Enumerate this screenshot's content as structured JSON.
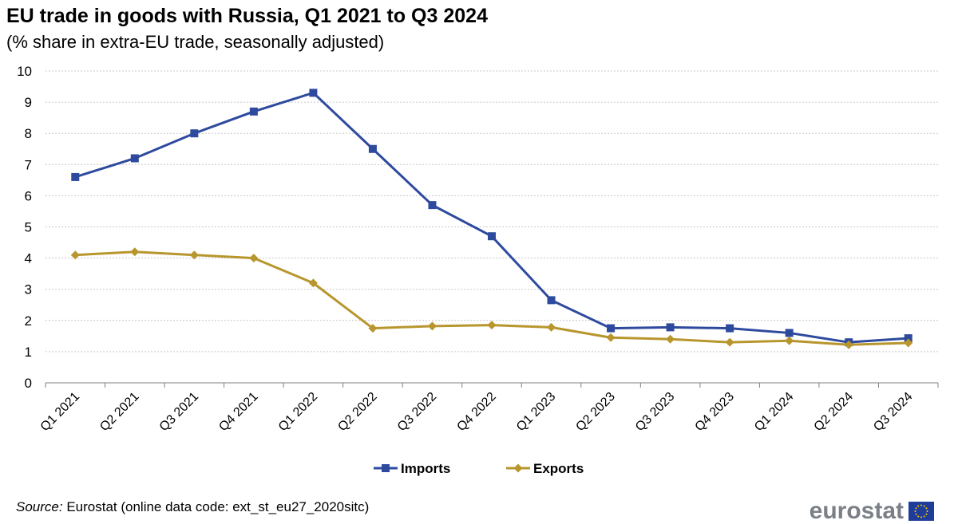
{
  "header": {
    "title": "EU trade in goods with Russia, Q1 2021 to Q3 2024",
    "subtitle": "(% share in extra-EU trade, seasonally adjusted)"
  },
  "footer": {
    "source_label": "Source:",
    "source_text": " Eurostat (online data code: ext_st_eu27_2020sitc)",
    "logo_text": "eurostat",
    "logo_icon": "eu-flag-icon"
  },
  "chart_data": {
    "type": "line",
    "title": "EU trade in goods with Russia, Q1 2021 to Q3 2024",
    "subtitle": "(% share in extra-EU trade, seasonally adjusted)",
    "categories": [
      "Q1 2021",
      "Q2 2021",
      "Q3 2021",
      "Q4 2021",
      "Q1 2022",
      "Q2 2022",
      "Q3 2022",
      "Q4 2022",
      "Q1 2023",
      "Q2 2023",
      "Q3 2023",
      "Q4 2023",
      "Q1 2024",
      "Q2 2024",
      "Q3 2024"
    ],
    "series": [
      {
        "name": "Imports",
        "color": "#2e4a9e",
        "marker": "square",
        "values": [
          6.6,
          7.2,
          8.0,
          8.7,
          9.3,
          7.5,
          5.7,
          4.7,
          2.65,
          1.75,
          1.78,
          1.75,
          1.6,
          1.3,
          1.43
        ]
      },
      {
        "name": "Exports",
        "color": "#b8962e",
        "marker": "diamond",
        "values": [
          4.1,
          4.2,
          4.1,
          4.0,
          3.2,
          1.75,
          1.82,
          1.85,
          1.78,
          1.45,
          1.4,
          1.3,
          1.35,
          1.22,
          1.28
        ]
      }
    ],
    "ylim": [
      0,
      10
    ],
    "yticks": [
      0,
      1,
      2,
      3,
      4,
      5,
      6,
      7,
      8,
      9,
      10
    ],
    "grid": true,
    "legend_position": "bottom-center"
  }
}
